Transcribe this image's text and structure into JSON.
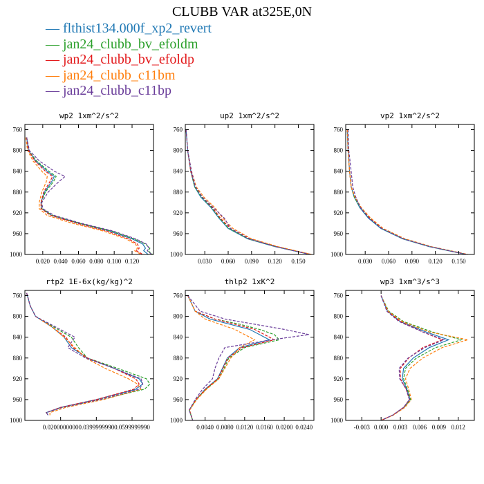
{
  "page_title": "CLUBB VAR at325E,0N",
  "colors": {
    "flthist134.000f_xp2_revert": "#1f78b4",
    "jan24_clubb_bv_efoldm": "#2ca02c",
    "jan24_clubb_bv_efoldp": "#e31a1c",
    "jan24_clubb_c11bm": "#ff7f0e",
    "jan24_clubb_c11bp": "#6a3d9a"
  },
  "legend": [
    {
      "name": "flthist134.000f_xp2_revert",
      "color": "#1f78b4",
      "dash": "solid"
    },
    {
      "name": "jan24_clubb_bv_efoldm",
      "color": "#2ca02c",
      "dash": "dashed"
    },
    {
      "name": "jan24_clubb_bv_efoldp",
      "color": "#e31a1c",
      "dash": "dashed"
    },
    {
      "name": "jan24_clubb_c11bm",
      "color": "#ff7f0e",
      "dash": "dashed"
    },
    {
      "name": "jan24_clubb_c11bp",
      "color": "#6a3d9a",
      "dash": "dashed"
    }
  ],
  "chart_data": [
    {
      "type": "line",
      "title": "wp2  1xm^2/s^2",
      "xlim": [
        0,
        0.144
      ],
      "ylim": [
        750,
        1000
      ],
      "y_inverted": true,
      "xticks": [
        0.02,
        0.04,
        0.06,
        0.08,
        0.1,
        0.12
      ],
      "xtick_labels": [
        "0.020",
        "0.040",
        "0.060",
        "0.080",
        "0.100",
        "0.120"
      ],
      "yticks": [
        760,
        800,
        840,
        880,
        920,
        960,
        1000
      ],
      "y": [
        775,
        800,
        820,
        840,
        850,
        860,
        880,
        900,
        912,
        925,
        940,
        955,
        970,
        980,
        988,
        993,
        1000
      ],
      "series": [
        {
          "name": "flthist134.000f_xp2_revert",
          "x": [
            0.002,
            0.004,
            0.012,
            0.025,
            0.033,
            0.03,
            0.022,
            0.018,
            0.019,
            0.03,
            0.06,
            0.095,
            0.12,
            0.132,
            0.135,
            0.133,
            0.138
          ]
        },
        {
          "name": "jan24_clubb_bv_efoldm",
          "x": [
            0.002,
            0.004,
            0.013,
            0.027,
            0.035,
            0.032,
            0.023,
            0.018,
            0.019,
            0.031,
            0.061,
            0.097,
            0.122,
            0.135,
            0.14,
            0.138,
            0.143
          ]
        },
        {
          "name": "jan24_clubb_bv_efoldp",
          "x": [
            0.002,
            0.004,
            0.011,
            0.023,
            0.031,
            0.028,
            0.021,
            0.018,
            0.018,
            0.029,
            0.058,
            0.092,
            0.116,
            0.126,
            0.128,
            0.125,
            0.132
          ]
        },
        {
          "name": "jan24_clubb_c11bm",
          "x": [
            0.001,
            0.003,
            0.009,
            0.019,
            0.025,
            0.024,
            0.019,
            0.016,
            0.016,
            0.025,
            0.053,
            0.088,
            0.113,
            0.124,
            0.126,
            0.123,
            0.13
          ]
        },
        {
          "name": "jan24_clubb_c11bp",
          "x": [
            0.002,
            0.005,
            0.016,
            0.033,
            0.045,
            0.038,
            0.026,
            0.019,
            0.02,
            0.033,
            0.063,
            0.099,
            0.124,
            0.136,
            0.139,
            0.137,
            0.142
          ]
        }
      ]
    },
    {
      "type": "line",
      "title": "up2  1xm^2/s^2",
      "xlim": [
        0.005,
        0.17
      ],
      "ylim": [
        750,
        1000
      ],
      "y_inverted": true,
      "xticks": [
        0.03,
        0.06,
        0.09,
        0.12,
        0.15
      ],
      "xtick_labels": [
        "0.030",
        "0.060",
        "0.090",
        "0.120",
        "0.150"
      ],
      "yticks": [
        760,
        800,
        840,
        880,
        920,
        960,
        1000
      ],
      "y": [
        760,
        800,
        840,
        870,
        890,
        910,
        930,
        950,
        970,
        985,
        1000
      ],
      "series": [
        {
          "name": "flthist134.000f_xp2_revert",
          "x": [
            0.006,
            0.008,
            0.012,
            0.017,
            0.025,
            0.038,
            0.048,
            0.06,
            0.085,
            0.12,
            0.165
          ]
        },
        {
          "name": "jan24_clubb_bv_efoldm",
          "x": [
            0.006,
            0.008,
            0.012,
            0.017,
            0.026,
            0.039,
            0.049,
            0.061,
            0.086,
            0.121,
            0.166
          ]
        },
        {
          "name": "jan24_clubb_bv_efoldp",
          "x": [
            0.006,
            0.008,
            0.012,
            0.018,
            0.027,
            0.04,
            0.05,
            0.063,
            0.088,
            0.122,
            0.166
          ]
        },
        {
          "name": "jan24_clubb_c11bm",
          "x": [
            0.006,
            0.008,
            0.013,
            0.019,
            0.029,
            0.043,
            0.053,
            0.066,
            0.09,
            0.124,
            0.167
          ]
        },
        {
          "name": "jan24_clubb_c11bp",
          "x": [
            0.006,
            0.008,
            0.013,
            0.018,
            0.027,
            0.041,
            0.055,
            0.063,
            0.087,
            0.121,
            0.165
          ]
        }
      ]
    },
    {
      "type": "line",
      "title": "vp2  1xm^2/s^2",
      "xlim": [
        0.005,
        0.17
      ],
      "ylim": [
        750,
        1000
      ],
      "y_inverted": true,
      "xticks": [
        0.03,
        0.06,
        0.09,
        0.12,
        0.15
      ],
      "xtick_labels": [
        "0.030",
        "0.060",
        "0.090",
        "0.120",
        "0.150"
      ],
      "yticks": [
        760,
        800,
        840,
        880,
        920,
        960,
        1000
      ],
      "y": [
        760,
        800,
        840,
        870,
        890,
        910,
        930,
        950,
        970,
        985,
        1000
      ],
      "series": [
        {
          "name": "flthist134.000f_xp2_revert",
          "x": [
            0.007,
            0.008,
            0.01,
            0.012,
            0.016,
            0.023,
            0.034,
            0.05,
            0.078,
            0.112,
            0.16
          ]
        },
        {
          "name": "jan24_clubb_bv_efoldm",
          "x": [
            0.007,
            0.008,
            0.01,
            0.012,
            0.016,
            0.024,
            0.035,
            0.051,
            0.079,
            0.113,
            0.16
          ]
        },
        {
          "name": "jan24_clubb_bv_efoldp",
          "x": [
            0.007,
            0.008,
            0.01,
            0.012,
            0.017,
            0.025,
            0.036,
            0.052,
            0.08,
            0.114,
            0.161
          ]
        },
        {
          "name": "jan24_clubb_c11bm",
          "x": [
            0.007,
            0.008,
            0.01,
            0.012,
            0.017,
            0.025,
            0.037,
            0.053,
            0.081,
            0.115,
            0.162
          ]
        },
        {
          "name": "jan24_clubb_c11bp",
          "x": [
            0.008,
            0.009,
            0.012,
            0.014,
            0.018,
            0.024,
            0.035,
            0.051,
            0.079,
            0.113,
            0.16
          ]
        }
      ]
    },
    {
      "type": "line",
      "title": "rtp2  1E-6x(kg/kg)^2",
      "xlim": [
        0,
        0.072
      ],
      "ylim": [
        750,
        1000
      ],
      "y_inverted": true,
      "xticks": [
        0.02,
        0.04,
        0.06
      ],
      "xtick_labels": [
        "0.0200000000",
        "0.0399999990",
        "0.0599999990"
      ],
      "yticks": [
        760,
        800,
        840,
        880,
        920,
        960,
        1000
      ],
      "y": [
        755,
        780,
        800,
        820,
        840,
        860,
        880,
        900,
        920,
        930,
        940,
        960,
        975,
        985,
        990
      ],
      "series": [
        {
          "name": "flthist134.000f_xp2_revert",
          "x": [
            0.001,
            0.003,
            0.006,
            0.015,
            0.022,
            0.026,
            0.035,
            0.05,
            0.064,
            0.066,
            0.062,
            0.04,
            0.02,
            0.012,
            0.013
          ]
        },
        {
          "name": "jan24_clubb_bv_efoldm",
          "x": [
            0.001,
            0.003,
            0.006,
            0.016,
            0.026,
            0.03,
            0.035,
            0.052,
            0.068,
            0.07,
            0.067,
            0.042,
            0.021,
            0.012,
            0.013
          ]
        },
        {
          "name": "jan24_clubb_bv_efoldp",
          "x": [
            0.001,
            0.003,
            0.006,
            0.015,
            0.023,
            0.027,
            0.035,
            0.05,
            0.062,
            0.064,
            0.061,
            0.04,
            0.02,
            0.012,
            0.013
          ]
        },
        {
          "name": "jan24_clubb_c11bm",
          "x": [
            0.001,
            0.003,
            0.006,
            0.015,
            0.022,
            0.028,
            0.034,
            0.045,
            0.058,
            0.063,
            0.065,
            0.044,
            0.023,
            0.014,
            0.014
          ]
        },
        {
          "name": "jan24_clubb_c11bp",
          "x": [
            0.001,
            0.003,
            0.006,
            0.017,
            0.028,
            0.024,
            0.034,
            0.05,
            0.065,
            0.066,
            0.064,
            0.042,
            0.021,
            0.012,
            0.013
          ]
        }
      ]
    },
    {
      "type": "line",
      "title": "thlp2  1xK^2",
      "xlim": [
        0,
        0.026
      ],
      "ylim": [
        750,
        1000
      ],
      "y_inverted": true,
      "xticks": [
        0.004,
        0.008,
        0.012,
        0.016,
        0.02,
        0.024
      ],
      "xtick_labels": [
        "0.0040",
        "0.0080",
        "0.0120",
        "0.0160",
        "0.0200",
        "0.0240"
      ],
      "yticks": [
        760,
        800,
        840,
        880,
        920,
        960,
        1000
      ],
      "y": [
        760,
        790,
        805,
        815,
        825,
        835,
        845,
        860,
        880,
        900,
        920,
        940,
        960,
        980,
        1000
      ],
      "series": [
        {
          "name": "flthist134.000f_xp2_revert",
          "x": [
            0.0005,
            0.002,
            0.005,
            0.009,
            0.013,
            0.015,
            0.017,
            0.011,
            0.0085,
            0.0075,
            0.0065,
            0.004,
            0.0022,
            0.0008,
            0.0015
          ]
        },
        {
          "name": "jan24_clubb_bv_efoldm",
          "x": [
            0.0005,
            0.002,
            0.006,
            0.011,
            0.015,
            0.018,
            0.019,
            0.012,
            0.0088,
            0.0078,
            0.0068,
            0.0042,
            0.0022,
            0.0008,
            0.0015
          ]
        },
        {
          "name": "jan24_clubb_bv_efoldp",
          "x": [
            0.0005,
            0.002,
            0.006,
            0.01,
            0.014,
            0.016,
            0.018,
            0.0115,
            0.0086,
            0.0076,
            0.0066,
            0.0041,
            0.0022,
            0.0008,
            0.0015
          ]
        },
        {
          "name": "jan24_clubb_c11bm",
          "x": [
            0.0005,
            0.002,
            0.004,
            0.007,
            0.01,
            0.012,
            0.014,
            0.011,
            0.0092,
            0.008,
            0.0068,
            0.0043,
            0.0023,
            0.0009,
            0.0015
          ]
        },
        {
          "name": "jan24_clubb_c11bp",
          "x": [
            0.0005,
            0.003,
            0.008,
            0.014,
            0.02,
            0.025,
            0.0175,
            0.008,
            0.0068,
            0.006,
            0.0055,
            0.0035,
            0.002,
            0.0008,
            0.0015
          ]
        }
      ]
    },
    {
      "type": "line",
      "title": "wp3  1xm^3/s^3",
      "xlim": [
        -0.0055,
        0.0145
      ],
      "ylim": [
        750,
        1000
      ],
      "y_inverted": true,
      "xticks": [
        -0.003,
        0,
        0.003,
        0.006,
        0.009,
        0.012
      ],
      "xtick_labels": [
        "-0.003",
        "0.000",
        "0.003",
        "0.006",
        "0.009",
        "0.012"
      ],
      "yticks": [
        760,
        800,
        840,
        880,
        920,
        960,
        1000
      ],
      "y": [
        760,
        790,
        810,
        830,
        845,
        860,
        880,
        900,
        920,
        940,
        960,
        975,
        990,
        1000
      ],
      "series": [
        {
          "name": "flthist134.000f_xp2_revert",
          "x": [
            0.0,
            0.001,
            0.003,
            0.007,
            0.0105,
            0.0075,
            0.005,
            0.0035,
            0.0033,
            0.004,
            0.0045,
            0.0035,
            0.0018,
            0.0
          ]
        },
        {
          "name": "jan24_clubb_bv_efoldm",
          "x": [
            0.0,
            0.0012,
            0.0035,
            0.008,
            0.0125,
            0.0085,
            0.0055,
            0.0038,
            0.0035,
            0.0041,
            0.0046,
            0.0036,
            0.0018,
            0.0
          ]
        },
        {
          "name": "jan24_clubb_bv_efoldp",
          "x": [
            0.0,
            0.001,
            0.003,
            0.0065,
            0.0095,
            0.0065,
            0.0043,
            0.003,
            0.003,
            0.0039,
            0.0044,
            0.0035,
            0.0018,
            0.0
          ]
        },
        {
          "name": "jan24_clubb_c11bm",
          "x": [
            0.0,
            0.0011,
            0.0033,
            0.0075,
            0.0135,
            0.0095,
            0.0065,
            0.0045,
            0.0038,
            0.0043,
            0.0047,
            0.0037,
            0.0019,
            0.0
          ]
        },
        {
          "name": "jan24_clubb_c11bp",
          "x": [
            0.0,
            0.0009,
            0.0028,
            0.0065,
            0.0098,
            0.0068,
            0.0042,
            0.0028,
            0.0029,
            0.0039,
            0.0044,
            0.0035,
            0.0018,
            0.0
          ]
        }
      ]
    }
  ]
}
